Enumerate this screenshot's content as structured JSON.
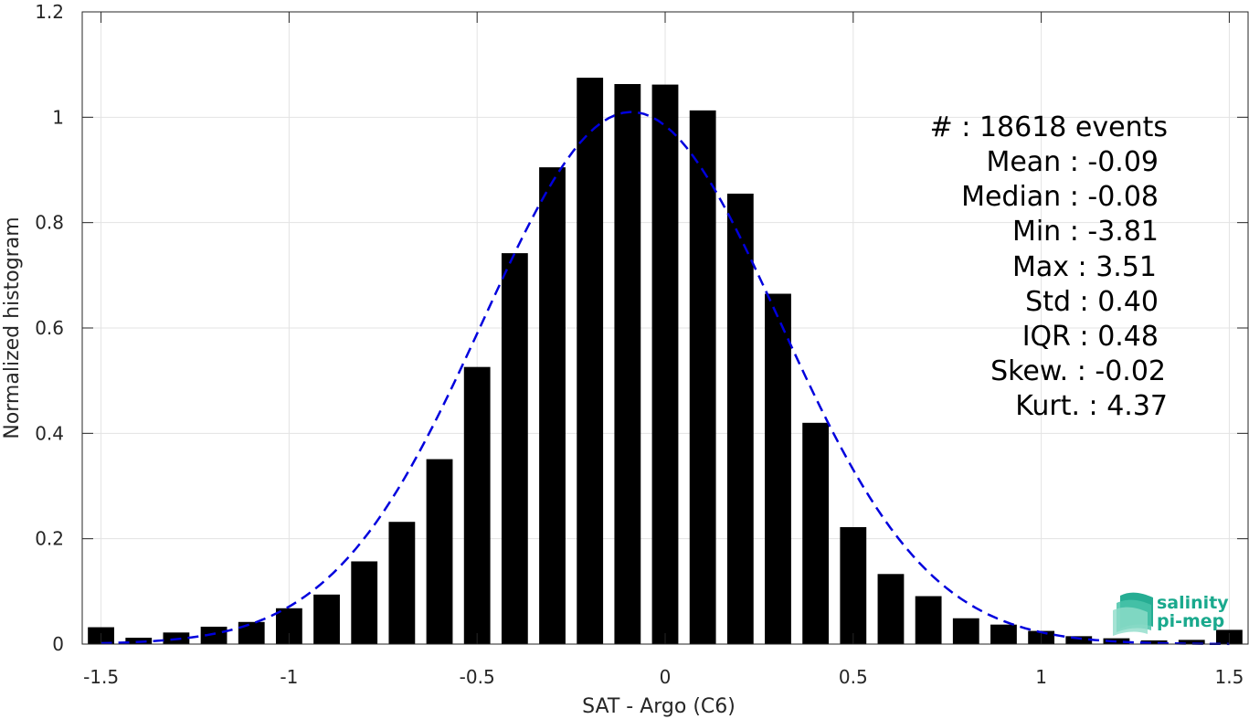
{
  "chart_data": {
    "type": "bar",
    "xlabel": "SAT - Argo (C6)",
    "ylabel": "Normalized histogram",
    "xlim": [
      -1.55,
      1.55
    ],
    "ylim": [
      0,
      1.2
    ],
    "xticks": [
      -1.5,
      -1,
      -0.5,
      0,
      0.5,
      1,
      1.5
    ],
    "xtick_labels": [
      "-1.5",
      "-1",
      "-0.5",
      "0",
      "0.5",
      "1",
      "1.5"
    ],
    "yticks": [
      0,
      0.2,
      0.4,
      0.6,
      0.8,
      1,
      1.2
    ],
    "ytick_labels": [
      "0",
      "0.2",
      "0.4",
      "0.6",
      "0.8",
      "1",
      "1.2"
    ],
    "grid": true,
    "bar_width": 0.07,
    "bars": {
      "color": "#000000",
      "x": [
        -1.5,
        -1.4,
        -1.3,
        -1.2,
        -1.1,
        -1.0,
        -0.9,
        -0.8,
        -0.7,
        -0.6,
        -0.5,
        -0.4,
        -0.3,
        -0.2,
        -0.1,
        0.0,
        0.1,
        0.2,
        0.3,
        0.4,
        0.5,
        0.6,
        0.7,
        0.8,
        0.9,
        1.0,
        1.1,
        1.2,
        1.3,
        1.4,
        1.5
      ],
      "values": [
        0.032,
        0.012,
        0.022,
        0.033,
        0.042,
        0.068,
        0.094,
        0.157,
        0.232,
        0.351,
        0.526,
        0.742,
        0.905,
        1.075,
        1.063,
        1.062,
        1.013,
        0.855,
        0.665,
        0.42,
        0.222,
        0.133,
        0.091,
        0.049,
        0.037,
        0.025,
        0.015,
        0.011,
        0.007,
        0.008,
        0.027
      ]
    },
    "fit": {
      "style": "dashed",
      "color": "#0000dd",
      "mean": -0.09,
      "std": 0.395,
      "peak": 1.01
    },
    "stats": [
      "#  : 18618 events",
      "Mean : -0.09",
      "Median : -0.08",
      "Min : -3.81",
      "Max : 3.51",
      "Std : 0.40",
      "IQR : 0.48",
      "Skew. : -0.02",
      "Kurt. : 4.37"
    ]
  },
  "logo": {
    "line1": "salinity",
    "line2": "pi-mep",
    "color": "#1aa98d"
  }
}
